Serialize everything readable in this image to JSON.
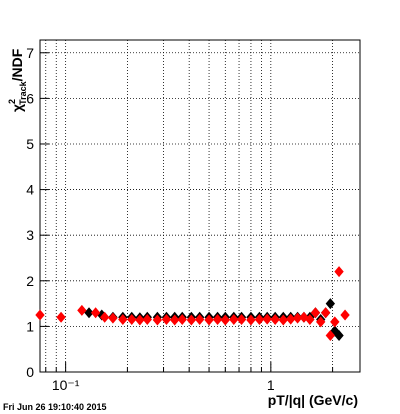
{
  "chart_data": {
    "type": "scatter",
    "x_label": "pT/|q| (GeV/c)",
    "y_label": {
      "symbol": "χ",
      "superscript": "2",
      "subscript": "Track",
      "suffix": "/NDF"
    },
    "footer": "Fri Jun 26 19:10:40 2015",
    "log_x": true,
    "grid": true,
    "xlim": [
      0.075,
      2.72
    ],
    "ylim": [
      0,
      7.28
    ],
    "xticks": [
      {
        "value": 0.1,
        "label": "10⁻¹"
      },
      1
    ],
    "xminor_ticks": [
      0.08,
      0.09,
      0.2,
      0.3,
      0.4,
      0.5,
      0.6,
      0.7,
      0.8,
      0.9,
      2
    ],
    "yticks": [
      0,
      1,
      2,
      3,
      4,
      5,
      6,
      7
    ],
    "series": [
      {
        "name": "black",
        "color": "#000000",
        "x": [
          0.13,
          0.15,
          0.17,
          0.19,
          0.21,
          0.23,
          0.25,
          0.28,
          0.31,
          0.34,
          0.37,
          0.41,
          0.45,
          0.5,
          0.55,
          0.6,
          0.66,
          0.72,
          0.8,
          0.88,
          0.96,
          1.05,
          1.15,
          1.25,
          1.35,
          1.45,
          1.55,
          1.65,
          1.75,
          1.85,
          1.95,
          2.05,
          2.15
        ],
        "values": [
          1.3,
          1.25,
          1.2,
          1.2,
          1.2,
          1.19,
          1.2,
          1.2,
          1.2,
          1.2,
          1.2,
          1.2,
          1.2,
          1.2,
          1.2,
          1.2,
          1.2,
          1.2,
          1.2,
          1.2,
          1.2,
          1.2,
          1.2,
          1.2,
          1.2,
          1.2,
          1.2,
          1.3,
          1.15,
          1.3,
          1.5,
          0.9,
          0.8
        ]
      },
      {
        "name": "red",
        "color": "#ff0000",
        "x": [
          0.075,
          0.095,
          0.12,
          0.14,
          0.155,
          0.17,
          0.19,
          0.21,
          0.23,
          0.25,
          0.28,
          0.31,
          0.34,
          0.37,
          0.41,
          0.45,
          0.5,
          0.55,
          0.6,
          0.66,
          0.72,
          0.8,
          0.88,
          0.96,
          1.05,
          1.15,
          1.25,
          1.35,
          1.45,
          1.55,
          1.65,
          1.75,
          1.85,
          1.95,
          2.05,
          2.15,
          2.3
        ],
        "values": [
          1.25,
          1.2,
          1.35,
          1.3,
          1.2,
          1.18,
          1.15,
          1.15,
          1.14,
          1.15,
          1.14,
          1.15,
          1.14,
          1.15,
          1.14,
          1.15,
          1.14,
          1.15,
          1.14,
          1.15,
          1.15,
          1.14,
          1.15,
          1.16,
          1.15,
          1.14,
          1.16,
          1.18,
          1.2,
          1.15,
          1.3,
          1.1,
          1.3,
          0.8,
          1.1,
          2.2,
          1.25
        ]
      }
    ]
  }
}
